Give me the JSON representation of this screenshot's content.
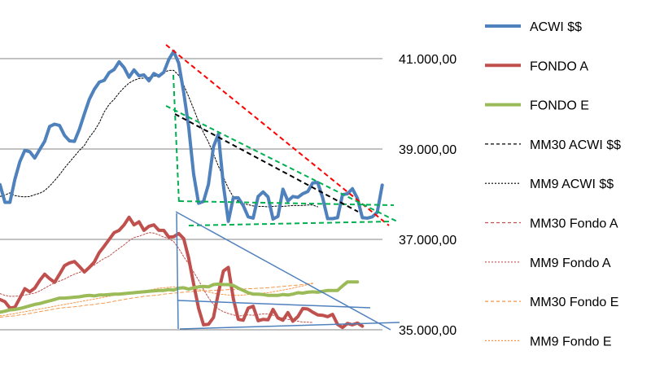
{
  "chart_data": {
    "type": "line",
    "title": "",
    "xlabel": "",
    "ylabel": "",
    "ylim": [
      35000,
      41000
    ],
    "yticks": [
      {
        "value": 41000,
        "label": "41.000,00"
      },
      {
        "value": 39000,
        "label": "39.000,00"
      },
      {
        "value": 37000,
        "label": "37.000,00"
      },
      {
        "value": 35000,
        "label": "35.000,00"
      }
    ],
    "grid": true,
    "legend_position": "right",
    "series": [
      {
        "name": "ACWI $$",
        "color": "#4F81BD",
        "style": "solid-thick",
        "values": [
          38210,
          37820,
          37820,
          38330,
          38720,
          38970,
          38940,
          38800,
          38990,
          39170,
          39500,
          39550,
          39520,
          39300,
          39180,
          39170,
          39440,
          39780,
          40100,
          40320,
          40480,
          40520,
          40690,
          40760,
          40930,
          40800,
          40590,
          40750,
          40620,
          40640,
          40510,
          40670,
          40610,
          40700,
          40980,
          41160,
          40900,
          40260,
          39500,
          38450,
          37800,
          37840,
          38220,
          39050,
          39330,
          38200,
          37400,
          37920,
          37920,
          37750,
          37500,
          37470,
          37950,
          38050,
          37940,
          37450,
          37510,
          38110,
          37850,
          37950,
          37930,
          38010,
          38060,
          38250,
          38260,
          37920,
          37460,
          37460,
          37480,
          37990,
          38010,
          38120,
          37910,
          37480,
          37470,
          37500,
          37600,
          38200
        ]
      },
      {
        "name": "FONDO A",
        "color": "#C0504D",
        "style": "solid-thick",
        "values": [
          35670,
          35620,
          35480,
          35500,
          35700,
          35910,
          35840,
          35920,
          36090,
          36230,
          36130,
          36050,
          36230,
          36420,
          36480,
          36510,
          36400,
          36280,
          36380,
          36500,
          36710,
          36850,
          37000,
          37150,
          37200,
          37320,
          37490,
          37320,
          37390,
          37200,
          37290,
          37320,
          37200,
          37200,
          37050,
          37060,
          37130,
          37020,
          36590,
          36020,
          35480,
          35110,
          35120,
          35270,
          35820,
          36300,
          36380,
          35690,
          35230,
          35210,
          35480,
          35520,
          35200,
          35230,
          35220,
          35450,
          35260,
          35210,
          35380,
          35190,
          35290,
          35470,
          35460,
          35390,
          35330,
          35320,
          35290,
          35340,
          35120,
          35050,
          35140,
          35110,
          35150,
          35080
        ]
      },
      {
        "name": "FONDO E",
        "color": "#9BBB59",
        "style": "solid-thick",
        "values": [
          35390,
          35410,
          35440,
          35450,
          35470,
          35500,
          35530,
          35560,
          35580,
          35610,
          35640,
          35670,
          35700,
          35700,
          35710,
          35720,
          35730,
          35750,
          35760,
          35750,
          35770,
          35770,
          35780,
          35790,
          35790,
          35800,
          35810,
          35820,
          35830,
          35840,
          35850,
          35860,
          35870,
          35870,
          35890,
          35880,
          35920,
          35930,
          35900,
          35930,
          35950,
          35960,
          35950,
          36000,
          36010,
          36000,
          36000,
          35980,
          35920,
          35870,
          35820,
          35790,
          35790,
          35780,
          35760,
          35760,
          35760,
          35780,
          35770,
          35790,
          35820,
          35810,
          35830,
          35840,
          35830,
          35850,
          35870,
          35870,
          35870,
          35970,
          36060,
          36060,
          36060
        ]
      },
      {
        "name": "MM30 ACWI $$",
        "color": "#000000",
        "style": "dashed-thin"
      },
      {
        "name": "MM9 ACWI $$",
        "color": "#000000",
        "style": "dotted-thin",
        "values": [
          37950,
          37980,
          38030,
          37970,
          37950,
          37940,
          37950,
          37990,
          38020,
          38080,
          38180,
          38300,
          38430,
          38580,
          38710,
          38840,
          38970,
          39080,
          39260,
          39400,
          39580,
          39820,
          39990,
          40100,
          40240,
          40360,
          40460,
          40520,
          40560,
          40570,
          40580,
          40600,
          40650,
          40690,
          40740,
          40740,
          40630,
          40420,
          40160,
          39890,
          39610,
          39360,
          39150,
          38890,
          38620,
          38380,
          38130,
          37940,
          37840,
          37790,
          37770,
          37740,
          37730,
          37730,
          37720,
          37730,
          37740,
          37730,
          37740,
          37750,
          37750,
          37750,
          37760,
          37760,
          37720
        ]
      },
      {
        "name": "MM30 Fondo A",
        "color": "#C0504D",
        "style": "dashed-thin"
      },
      {
        "name": "MM9 Fondo A",
        "color": "#C0504D",
        "style": "dotted-thin",
        "values": [
          35800,
          35760,
          35740,
          35740,
          35750,
          35770,
          35790,
          35810,
          35860,
          35920,
          35980,
          36040,
          36080,
          36120,
          36180,
          36230,
          36270,
          36310,
          36370,
          36430,
          36510,
          36580,
          36630,
          36720,
          36800,
          36880,
          36970,
          37040,
          37070,
          37110,
          37150,
          37140,
          37100,
          37050,
          37020,
          36950,
          36800,
          36620,
          36460,
          36280,
          36100,
          35890,
          35710,
          35560,
          35460,
          35400,
          35360,
          35330,
          35300,
          35320,
          35330,
          35320,
          35340,
          35350,
          35350,
          35320,
          35290,
          35260,
          35230,
          35210,
          35190,
          35170,
          35170,
          35160
        ]
      },
      {
        "name": "MM30 Fondo E",
        "color": "#F79646",
        "style": "dashed-thin",
        "values": [
          35280,
          35290,
          35300,
          35310,
          35330,
          35340,
          35360,
          35380,
          35400,
          35420,
          35440,
          35460,
          35480,
          35490,
          35500,
          35510,
          35520,
          35540,
          35550,
          35560,
          35580,
          35590,
          35610,
          35630,
          35650,
          35670,
          35690,
          35710,
          35720,
          35740,
          35750,
          35760,
          35770,
          35790,
          35800,
          35810,
          35820,
          35830,
          35840,
          35850,
          35860,
          35860,
          35870,
          35870,
          35880,
          35880,
          35890,
          35890,
          35890,
          35900,
          35910,
          35910,
          35920,
          35920,
          35930,
          35940,
          35950,
          35960,
          35970,
          35980,
          35990,
          36000,
          36020,
          36030
        ]
      },
      {
        "name": "MM9 Fondo E",
        "color": "#F79646",
        "style": "dotted-thin",
        "values": [
          35310,
          35320,
          35340,
          35360,
          35380,
          35400,
          35420,
          35440,
          35460,
          35480,
          35500,
          35520,
          35540,
          35560,
          35580,
          35600,
          35620,
          35640,
          35660,
          35680,
          35700,
          35720,
          35740,
          35760,
          35780,
          35800,
          35810,
          35830,
          35840,
          35860,
          35880,
          35900,
          35920,
          35930,
          35940,
          35950,
          35940,
          35930,
          35920,
          35910,
          35890,
          35870,
          35840,
          35810,
          35790,
          35780,
          35770,
          35760,
          35760,
          35770,
          35780,
          35790,
          35800,
          35810,
          35820,
          35840,
          35860,
          35880,
          35900,
          35920,
          35950,
          35970,
          36000,
          36020
        ]
      }
    ],
    "trendlines": [
      {
        "name": "red-dashed-resistance",
        "color": "#FF0000",
        "style": "dashed",
        "points": [
          [
            204,
            55
          ],
          [
            478,
            277
          ]
        ]
      },
      {
        "name": "green-dashed-upper",
        "color": "#00B050",
        "style": "dashed",
        "points": [
          [
            204,
            130
          ],
          [
            488,
            272
          ]
        ]
      },
      {
        "name": "green-dashed-vertical",
        "color": "#00B050",
        "style": "dashed",
        "points": [
          [
            213,
            92
          ],
          [
            220,
            250
          ]
        ]
      },
      {
        "name": "green-dashed-mid",
        "color": "#00B050",
        "style": "dashed",
        "points": [
          [
            220,
            247
          ],
          [
            484,
            252
          ]
        ]
      },
      {
        "name": "green-dashed-low",
        "color": "#00B050",
        "style": "dashed",
        "points": [
          [
            232,
            277
          ],
          [
            480,
            272
          ]
        ]
      },
      {
        "name": "black-dashed-channel",
        "color": "#000000",
        "style": "dashed",
        "points": [
          [
            215,
            140
          ],
          [
            440,
            260
          ]
        ]
      },
      {
        "name": "blue-upper-fondo-a",
        "color": "#4F81BD",
        "style": "solid",
        "points": [
          [
            216,
            260
          ],
          [
            480,
            405
          ]
        ]
      },
      {
        "name": "blue-vertical-fondo-a",
        "color": "#4F81BD",
        "style": "solid",
        "points": [
          [
            217,
            262
          ],
          [
            219,
            404
          ]
        ]
      },
      {
        "name": "blue-mid-fondo-a",
        "color": "#4F81BD",
        "style": "solid",
        "points": [
          [
            219,
            369
          ],
          [
            455,
            378
          ]
        ]
      },
      {
        "name": "blue-base-fondo-a",
        "color": "#4F81BD",
        "style": "solid",
        "points": [
          [
            221,
            404
          ],
          [
            491,
            396
          ]
        ]
      }
    ]
  }
}
